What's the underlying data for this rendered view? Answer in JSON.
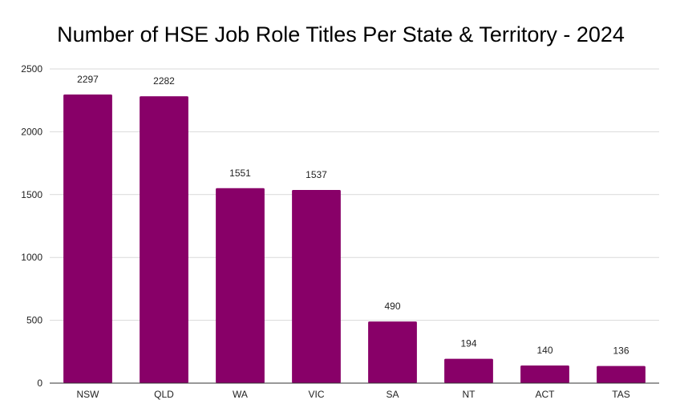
{
  "chart_data": {
    "type": "bar",
    "title": "Number of HSE Job Role Titles Per State & Territory - 2024",
    "xlabel": "",
    "ylabel": "",
    "categories": [
      "NSW",
      "QLD",
      "WA",
      "VIC",
      "SA",
      "NT",
      "ACT",
      "TAS"
    ],
    "values": [
      2297,
      2282,
      1551,
      1537,
      490,
      194,
      140,
      136
    ],
    "data_labels": [
      "2297",
      "2282",
      "1551",
      "1537",
      "490",
      "194",
      "140",
      "136"
    ],
    "ylim": [
      0,
      2500
    ],
    "yticks": [
      "0",
      "500",
      "1000",
      "1500",
      "2000",
      "2500"
    ],
    "grid": true,
    "legend": "none",
    "bar_color": "#880068"
  }
}
